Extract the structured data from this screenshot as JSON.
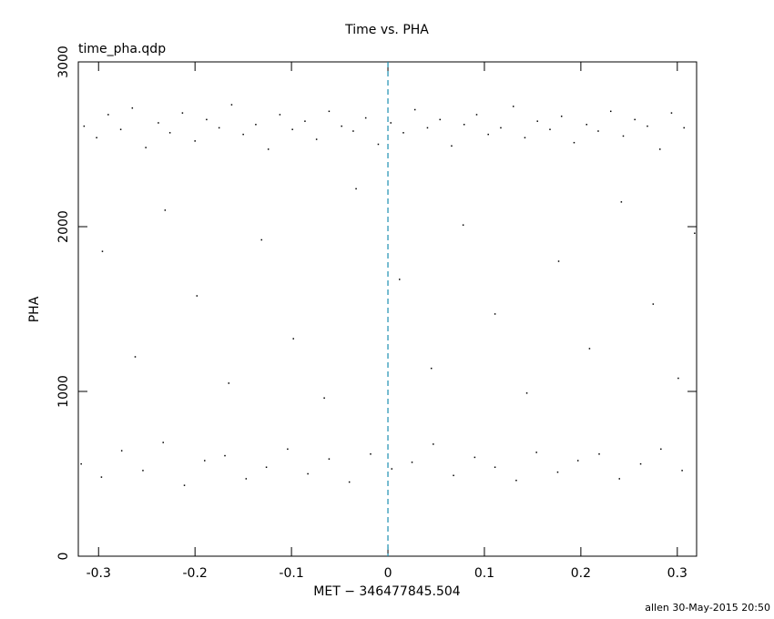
{
  "chart_data": {
    "type": "scatter",
    "title": "Time vs. PHA",
    "subtitle": "time_pha.qdp",
    "x_label": "MET − 346477845.504",
    "y_label": "PHA",
    "footer": "allen 30-May-2015 20:50",
    "xlim": [
      -0.321,
      0.32
    ],
    "ylim": [
      0,
      3000
    ],
    "xticks": [
      -0.3,
      -0.2,
      -0.1,
      0,
      0.1,
      0.2,
      0.3
    ],
    "yticks": [
      0,
      1000,
      2000,
      3000
    ],
    "vline": 0,
    "vline_color": "#1b8fb0",
    "color": "#000000",
    "x": [
      -0.315,
      -0.302,
      -0.29,
      -0.277,
      -0.265,
      -0.251,
      -0.238,
      -0.226,
      -0.213,
      -0.2,
      -0.188,
      -0.175,
      -0.162,
      -0.15,
      -0.137,
      -0.124,
      -0.112,
      -0.099,
      -0.086,
      -0.074,
      -0.061,
      -0.048,
      -0.036,
      -0.023,
      -0.01,
      0.003,
      0.016,
      0.028,
      0.041,
      0.054,
      0.066,
      0.079,
      0.092,
      0.104,
      0.117,
      0.13,
      0.142,
      0.155,
      0.168,
      0.18,
      0.193,
      0.206,
      0.218,
      0.231,
      0.244,
      0.256,
      0.269,
      0.282,
      0.294,
      0.307,
      -0.296,
      -0.262,
      -0.231,
      -0.198,
      -0.165,
      -0.131,
      -0.098,
      -0.066,
      -0.033,
      0.012,
      0.045,
      0.078,
      0.111,
      0.144,
      0.177,
      0.209,
      0.242,
      0.275,
      0.301,
      0.318,
      -0.318,
      -0.297,
      -0.276,
      -0.254,
      -0.233,
      -0.211,
      -0.19,
      -0.169,
      -0.147,
      -0.126,
      -0.104,
      -0.083,
      -0.061,
      -0.04,
      -0.018,
      0.004,
      0.025,
      0.047,
      0.068,
      0.09,
      0.111,
      0.133,
      0.154,
      0.176,
      0.197,
      0.219,
      0.24,
      0.262,
      0.283,
      0.305
    ],
    "values": [
      2610,
      2540,
      2680,
      2590,
      2720,
      2480,
      2630,
      2570,
      2690,
      2520,
      2650,
      2600,
      2740,
      2560,
      2620,
      2470,
      2680,
      2590,
      2640,
      2530,
      2700,
      2610,
      2580,
      2660,
      2500,
      2630,
      2570,
      2710,
      2600,
      2650,
      2490,
      2620,
      2680,
      2560,
      2600,
      2730,
      2540,
      2640,
      2590,
      2670,
      2510,
      2620,
      2580,
      2700,
      2550,
      2650,
      2610,
      2470,
      2690,
      2600,
      1850,
      1210,
      2100,
      1580,
      1050,
      1920,
      1320,
      960,
      2230,
      1680,
      1140,
      2010,
      1470,
      990,
      1790,
      1260,
      2150,
      1530,
      1080,
      1960,
      560,
      480,
      640,
      520,
      690,
      430,
      580,
      610,
      470,
      540,
      650,
      500,
      590,
      450,
      620,
      530,
      570,
      680,
      490,
      600,
      540,
      460,
      630,
      510,
      580,
      620,
      470,
      560,
      650,
      520
    ]
  }
}
